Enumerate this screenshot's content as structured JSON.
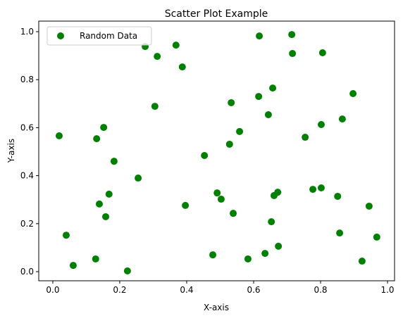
{
  "chart_data": {
    "type": "scatter",
    "title": "Scatter Plot Example",
    "x_label": "X-axis",
    "y_label": "Y-axis",
    "legend": "upper left",
    "series": [
      {
        "name": "Random Data",
        "color": "#008000",
        "x": [
          0.019,
          0.04,
          0.061,
          0.128,
          0.131,
          0.139,
          0.152,
          0.158,
          0.168,
          0.183,
          0.223,
          0.255,
          0.276,
          0.305,
          0.312,
          0.368,
          0.387,
          0.396,
          0.453,
          0.478,
          0.491,
          0.503,
          0.528,
          0.533,
          0.539,
          0.558,
          0.583,
          0.617,
          0.615,
          0.634,
          0.644,
          0.653,
          0.657,
          0.661,
          0.672,
          0.674,
          0.714,
          0.716,
          0.754,
          0.777,
          0.802,
          0.802,
          0.806,
          0.851,
          0.857,
          0.865,
          0.897,
          0.924,
          0.945,
          0.968
        ],
        "values": [
          0.566,
          0.152,
          0.026,
          0.053,
          0.554,
          0.282,
          0.601,
          0.229,
          0.323,
          0.46,
          0.003,
          0.39,
          0.938,
          0.689,
          0.897,
          0.944,
          0.853,
          0.276,
          0.484,
          0.07,
          0.328,
          0.302,
          0.531,
          0.704,
          0.243,
          0.584,
          0.053,
          0.982,
          0.73,
          0.076,
          0.654,
          0.208,
          0.765,
          0.317,
          0.331,
          0.106,
          0.988,
          0.909,
          0.56,
          0.343,
          0.349,
          0.613,
          0.912,
          0.314,
          0.161,
          0.636,
          0.742,
          0.044,
          0.273,
          0.144
        ]
      }
    ],
    "xlim": [
      -0.042,
      1.021
    ],
    "ylim": [
      -0.038,
      1.044
    ],
    "xticks": [
      {
        "value": 0,
        "label": "0.0"
      },
      0.2,
      0.4,
      0.6,
      0.8,
      {
        "value": 1,
        "label": "1.0"
      }
    ],
    "yticks": [
      {
        "value": 0,
        "label": "0.0"
      },
      0.2,
      0.4,
      0.6,
      0.8,
      {
        "value": 1,
        "label": "1.0"
      }
    ]
  }
}
